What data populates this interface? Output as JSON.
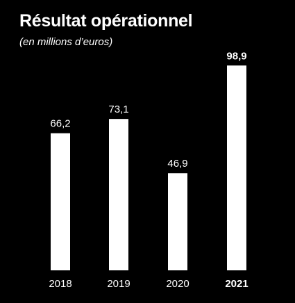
{
  "title": "Résultat opérationnel",
  "subtitle": "(en millions d’euros)",
  "chart_data": {
    "type": "bar",
    "title": "Résultat opérationnel",
    "subtitle": "(en millions d’euros)",
    "categories": [
      "2018",
      "2019",
      "2020",
      "2021"
    ],
    "values": [
      66.2,
      73.1,
      46.9,
      98.9
    ],
    "value_labels": [
      "66,2",
      "73,1",
      "46,9",
      "98,9"
    ],
    "highlight_category": "2021",
    "xlabel": "",
    "ylabel": "",
    "ylim": [
      0,
      100
    ],
    "grid": false,
    "bar_color": "#ffffff",
    "background": "#000000"
  }
}
